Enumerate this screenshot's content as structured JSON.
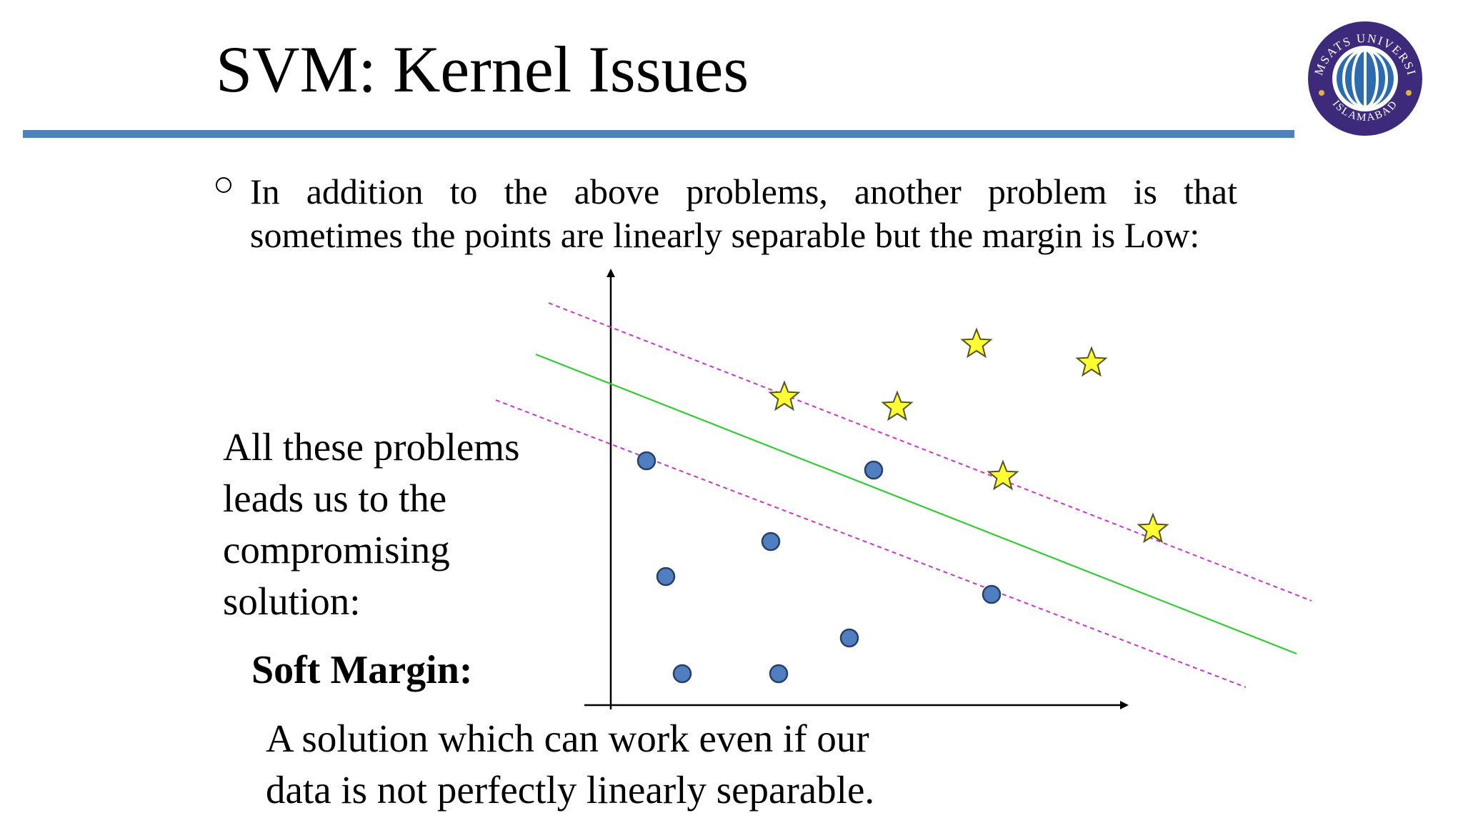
{
  "slide": {
    "title": "SVM: Kernel Issues",
    "bullet": {
      "line1_words": [
        "In",
        "addition",
        "to",
        "the",
        "above",
        "problems,",
        "another",
        "problem",
        "is",
        "that"
      ],
      "line2": "sometimes the points are linearly separable but the margin is Low:"
    },
    "left_text": [
      "All these problems",
      "leads us to the",
      "compromising",
      "solution:"
    ],
    "soft_margin_heading": "Soft Margin:",
    "solution_text": [
      "A solution which can work even if our",
      "data is not perfectly linearly separable."
    ]
  },
  "logo": {
    "arc_text_top": "COMSATS UNIVERSITY",
    "arc_text_bottom": "ISLAMABAD",
    "colors": {
      "ring": "#3d2a7a",
      "globe": "#2b6cb0",
      "gold": "#e0b040"
    }
  },
  "diagram": {
    "colors": {
      "title_rule": "#4f81bd",
      "separator": "#33cc33",
      "margin_lines": "#cc33cc",
      "circle_fill": "#4f7fc0",
      "circle_stroke": "#2a3f66",
      "star_fill": "#ffff33",
      "star_stroke": "#555522",
      "axes": "#000000"
    },
    "line_style": {
      "separator": "solid",
      "margins": "dashed"
    }
  }
}
